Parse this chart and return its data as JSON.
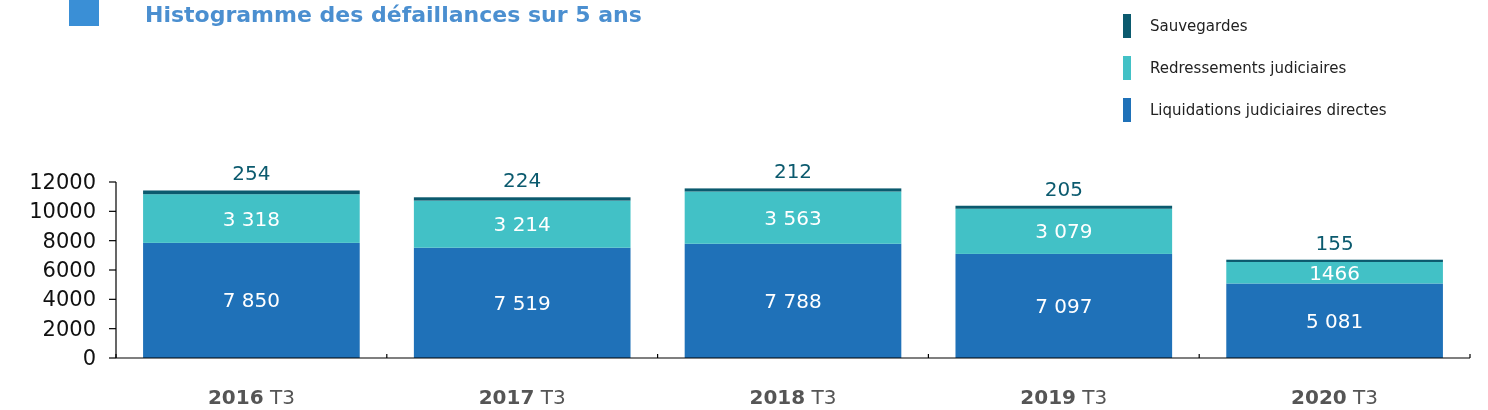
{
  "chart_data": {
    "type": "bar",
    "title": "Histogramme des défaillances sur 5 ans",
    "stacked": true,
    "legend": "top right",
    "categories": [
      "2016 T3",
      "2017 T3",
      "2018 T3",
      "2019 T3",
      "2020 T3"
    ],
    "ylim": [
      0,
      12000
    ],
    "yticks": [
      0,
      2000,
      4000,
      6000,
      8000,
      10000,
      12000
    ],
    "grid": false,
    "series": [
      {
        "name": "Liquidations judiciaires directes",
        "color": "#1f71b8",
        "values": [
          7850,
          7519,
          7788,
          7097,
          5081
        ],
        "value_labels": [
          "7 850",
          "7 519",
          "7 788",
          "7 097",
          "5 081"
        ]
      },
      {
        "name": "Redressements judiciaires",
        "color": "#42c1c6",
        "values": [
          3318,
          3214,
          3563,
          3079,
          1466
        ],
        "value_labels": [
          "3 318",
          "3 214",
          "3 563",
          "3 079",
          "1466"
        ]
      },
      {
        "name": "Sauvegardes",
        "color": "#0b5a6e",
        "values": [
          254,
          224,
          212,
          205,
          155
        ],
        "value_labels": [
          "254",
          "224",
          "212",
          "205",
          "155"
        ]
      }
    ]
  }
}
